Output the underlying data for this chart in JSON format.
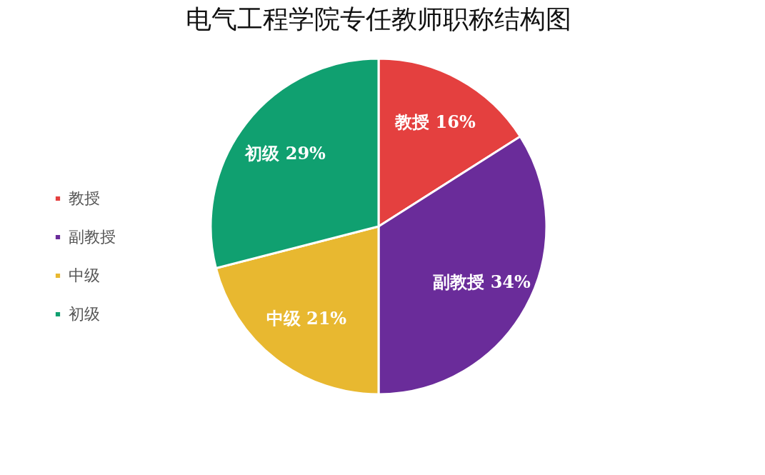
{
  "chart_data": {
    "type": "pie",
    "title": "电气工程学院专任教师职称结构图",
    "categories": [
      "教授",
      "副教授",
      "中级",
      "初级"
    ],
    "values": [
      16,
      34,
      21,
      29
    ],
    "colors": [
      "#e4403f",
      "#6a2c9a",
      "#e8b830",
      "#10a070"
    ],
    "value_labels": [
      "教授 16%",
      "副教授 34%",
      "中级 21%",
      "初级 29%"
    ],
    "legend": "left"
  }
}
